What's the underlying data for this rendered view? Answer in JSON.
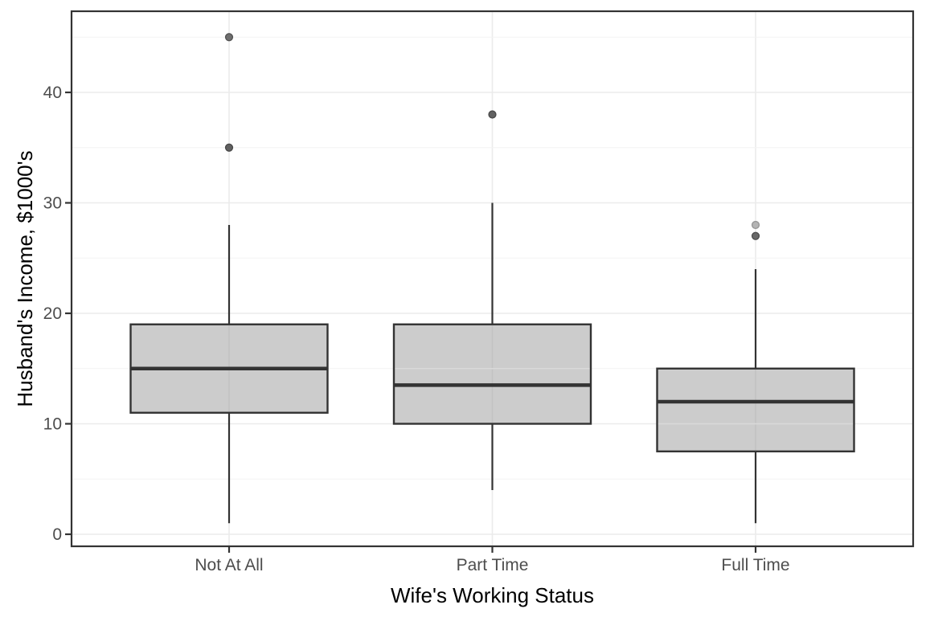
{
  "chart_data": {
    "type": "boxplot",
    "title": "",
    "xlabel": "Wife's Working Status",
    "ylabel": "Husband's Income, $1000's",
    "categories": [
      "Not At All",
      "Part Time",
      "Full Time"
    ],
    "boxes": [
      {
        "category": "Not At All",
        "whisker_low": 1,
        "q1": 11,
        "median": 15,
        "q3": 19,
        "whisker_high": 28,
        "outliers": [
          {
            "value": 35,
            "fill": "#606060",
            "stroke": "#4a4a4a"
          },
          {
            "value": 45,
            "fill": "#6e6e6e",
            "stroke": "#545454"
          }
        ]
      },
      {
        "category": "Part Time",
        "whisker_low": 4,
        "q1": 10,
        "median": 13.5,
        "q3": 19,
        "whisker_high": 30,
        "outliers": [
          {
            "value": 38,
            "fill": "#626262",
            "stroke": "#4a4a4a"
          }
        ]
      },
      {
        "category": "Full Time",
        "whisker_low": 1,
        "q1": 7.5,
        "median": 12,
        "q3": 15,
        "whisker_high": 24,
        "outliers": [
          {
            "value": 27,
            "fill": "#686868",
            "stroke": "#4f4f4f"
          },
          {
            "value": 28,
            "fill": "#b4b4b4",
            "stroke": "#979797"
          }
        ]
      }
    ],
    "y_axis": {
      "major_ticks": [
        0,
        10,
        20,
        30,
        40
      ],
      "minor_ticks": [
        5,
        15,
        25,
        35,
        45
      ],
      "range": [
        -1.1,
        47.4
      ]
    },
    "grid": {
      "major": true,
      "minor": true
    },
    "legend": false
  },
  "style": {
    "box_fill": "#cccccc",
    "stroke_dark": "#333333",
    "grid_major": "#ebebeb",
    "grid_minor": "#f3f3f3",
    "grid_over_box_h": "#d9d9d9",
    "grid_over_box_v": "#c3c3c3",
    "tick_label_color": "#4d4d4d",
    "axis_title_color": "#000000",
    "panel_background": "#ffffff"
  }
}
